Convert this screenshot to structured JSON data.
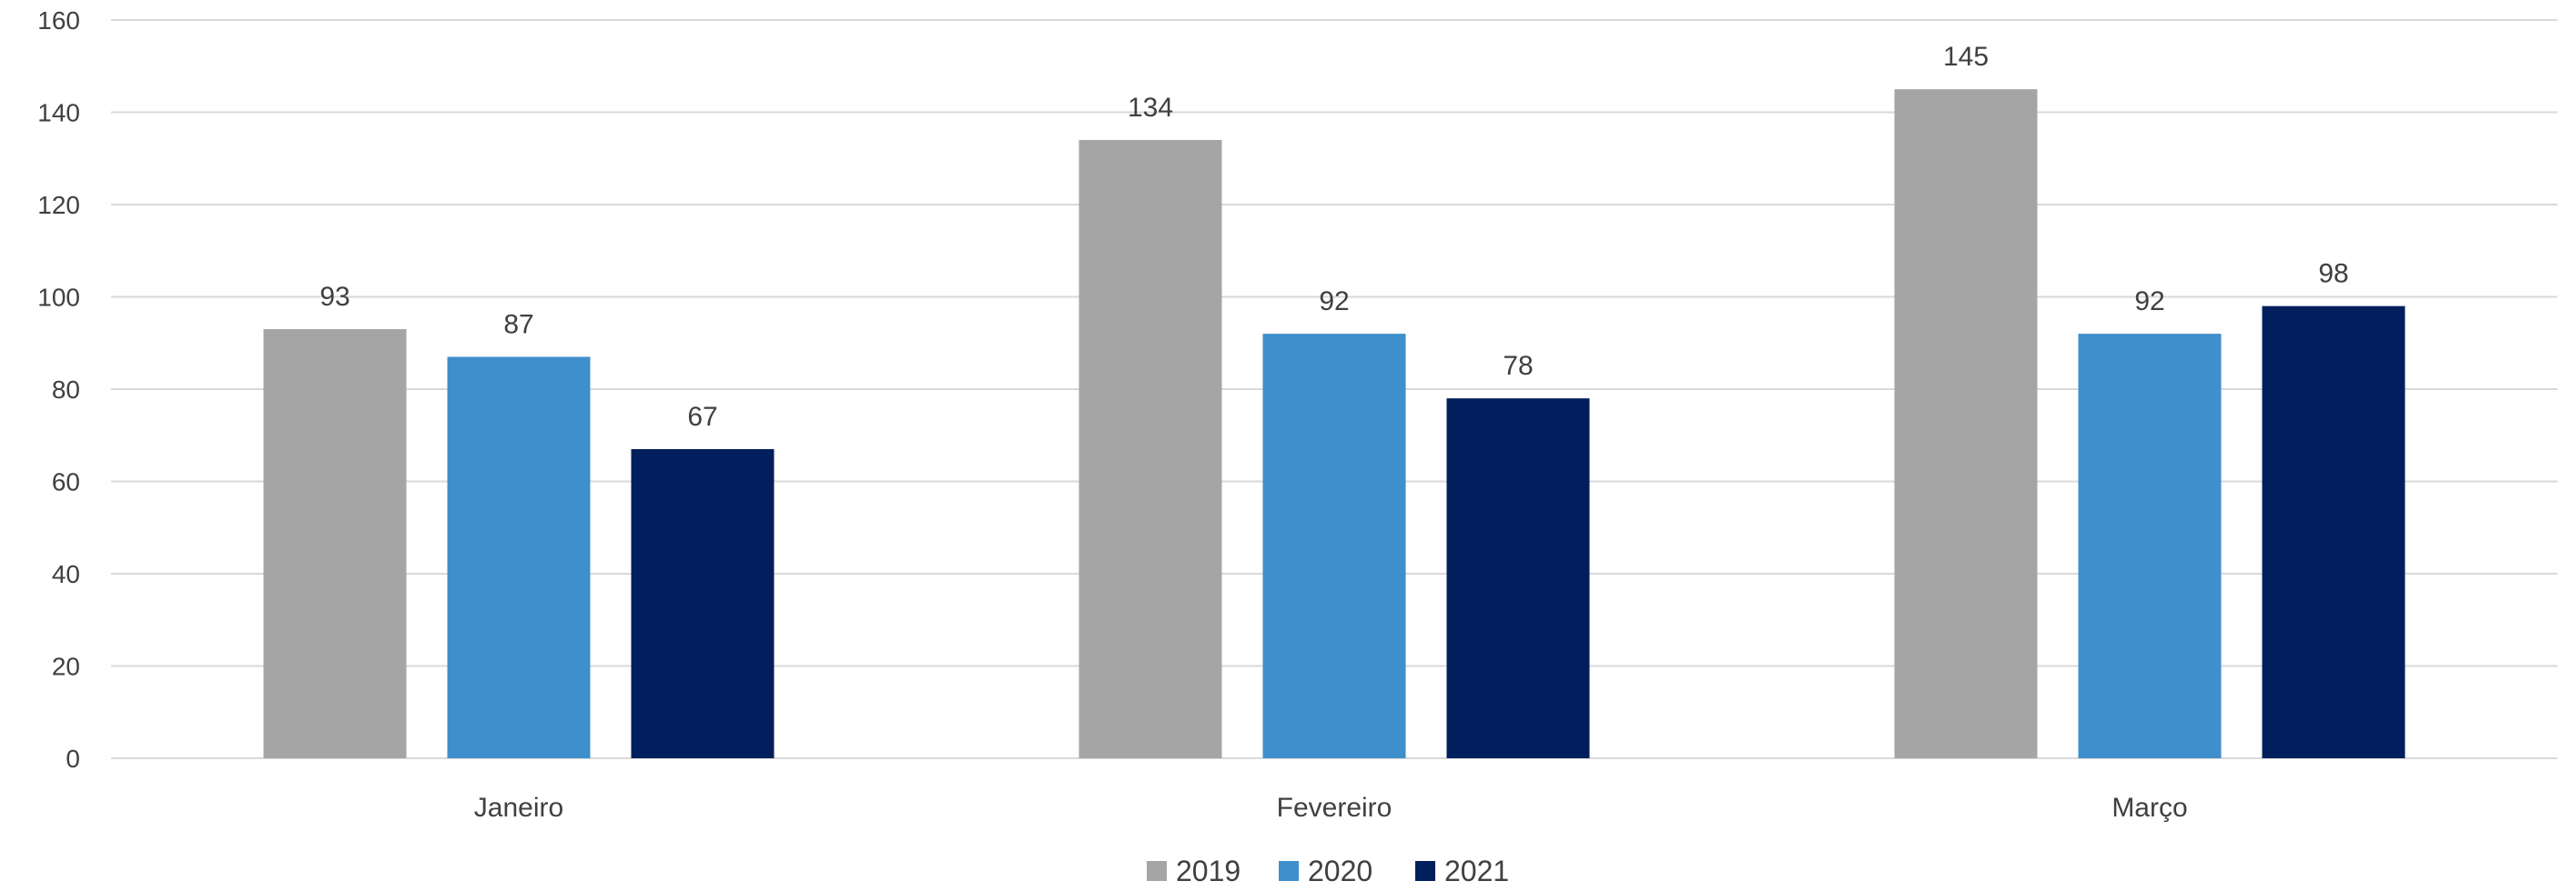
{
  "chart_data": {
    "type": "bar",
    "categories": [
      "Janeiro",
      "Fevereiro",
      "Março"
    ],
    "series": [
      {
        "name": "2019",
        "values": [
          93,
          134,
          145
        ],
        "color": "#A5A5A5"
      },
      {
        "name": "2020",
        "values": [
          87,
          92,
          92
        ],
        "color": "#3E8FCC"
      },
      {
        "name": "2021",
        "values": [
          67,
          78,
          98
        ],
        "color": "#001F5C"
      }
    ],
    "title": "",
    "xlabel": "",
    "ylabel": "",
    "ylim": [
      0,
      160
    ],
    "yticks": [
      0,
      20,
      40,
      60,
      80,
      100,
      120,
      140,
      160
    ],
    "grid": true,
    "gridline_color": "#D9D9D9",
    "data_labels": true,
    "legend_position": "bottom"
  }
}
